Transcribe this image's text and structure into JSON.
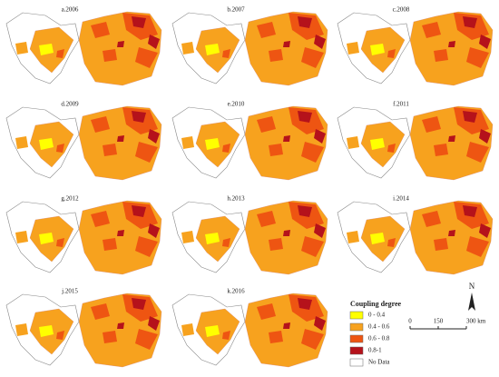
{
  "panels": [
    {
      "label": "a.2006"
    },
    {
      "label": "b.2007"
    },
    {
      "label": "c.2008"
    },
    {
      "label": "d.2009"
    },
    {
      "label": "e.2010"
    },
    {
      "label": "f.2011"
    },
    {
      "label": "g.2012"
    },
    {
      "label": "h.2013"
    },
    {
      "label": "i.2014"
    },
    {
      "label": "j.2015"
    },
    {
      "label": "k.2016"
    }
  ],
  "legend": {
    "title": "Coupling degree",
    "items": [
      {
        "label": "0 - 0.4",
        "color": "#ffff00"
      },
      {
        "label": "0.4 - 0.6",
        "color": "#f7a21e"
      },
      {
        "label": "0.6 - 0.8",
        "color": "#ee5512"
      },
      {
        "label": "0.8-1",
        "color": "#b5121b"
      },
      {
        "label": "No Data",
        "color": "#ffffff"
      }
    ]
  },
  "scale_bar": {
    "ticks": [
      "0",
      "150",
      "300 km"
    ]
  },
  "north": "N"
}
